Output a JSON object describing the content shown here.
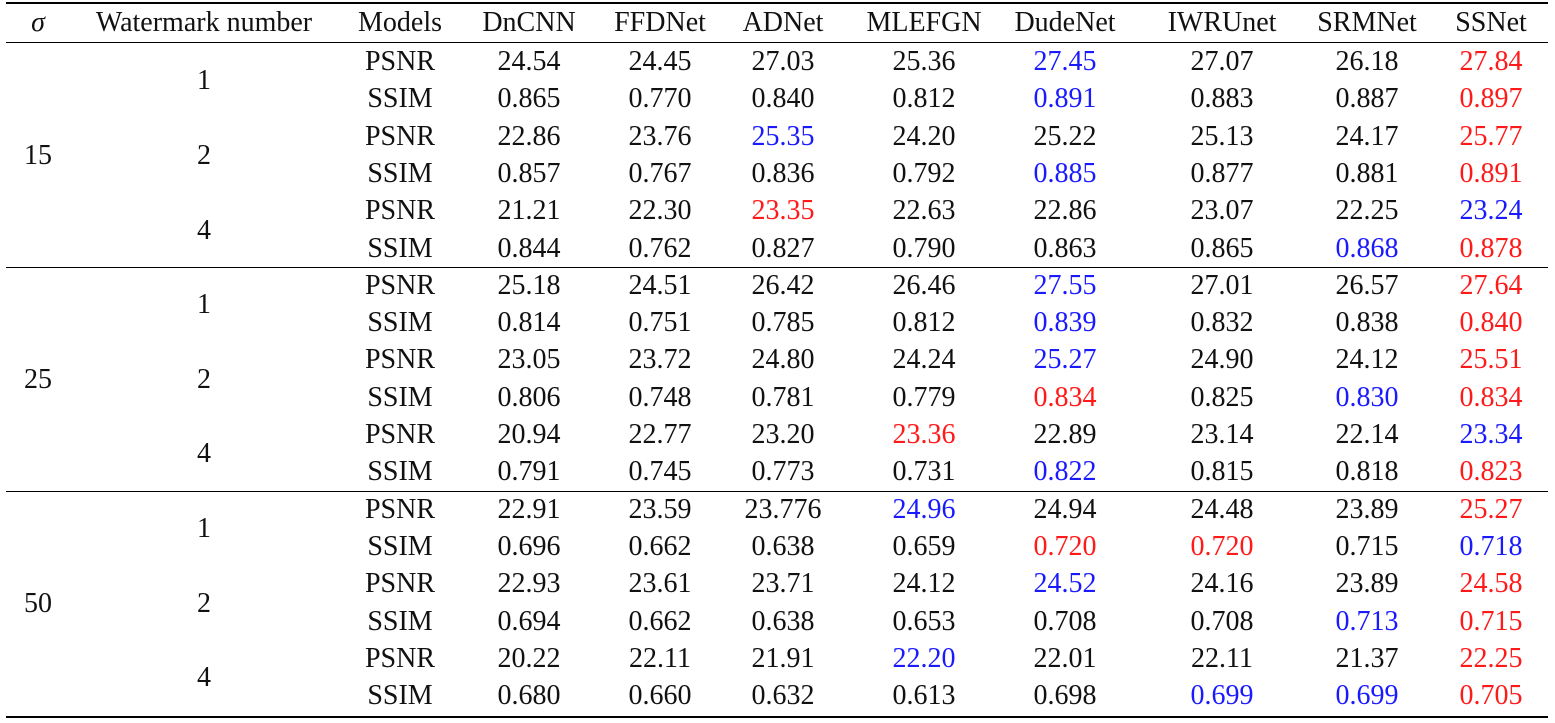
{
  "table": {
    "columns": [
      "σ",
      "Watermark number",
      "Models",
      "DnCNN",
      "FFDNet",
      "ADNet",
      "MLEFGN",
      "DudeNet",
      "IWRUnet",
      "SRMNet",
      "SSNet"
    ],
    "colors": {
      "best": "#ff1a1a",
      "second": "#1a1aff",
      "normal": "#111111"
    },
    "groups": [
      {
        "sigma": "15",
        "subgroups": [
          {
            "watermark": "1",
            "rows": [
              {
                "metric": "PSNR",
                "values": [
                  "24.54",
                  "24.45",
                  "27.03",
                  "25.36",
                  "27.45",
                  "27.07",
                  "26.18",
                  "27.84"
                ],
                "marks": [
                  "",
                  "",
                  "",
                  "",
                  "second",
                  "",
                  "",
                  "best"
                ]
              },
              {
                "metric": "SSIM",
                "values": [
                  "0.865",
                  "0.770",
                  "0.840",
                  "0.812",
                  "0.891",
                  "0.883",
                  "0.887",
                  "0.897"
                ],
                "marks": [
                  "",
                  "",
                  "",
                  "",
                  "second",
                  "",
                  "",
                  "best"
                ]
              }
            ]
          },
          {
            "watermark": "2",
            "rows": [
              {
                "metric": "PSNR",
                "values": [
                  "22.86",
                  "23.76",
                  "25.35",
                  "24.20",
                  "25.22",
                  "25.13",
                  "24.17",
                  "25.77"
                ],
                "marks": [
                  "",
                  "",
                  "second",
                  "",
                  "",
                  "",
                  "",
                  "best"
                ]
              },
              {
                "metric": "SSIM",
                "values": [
                  "0.857",
                  "0.767",
                  "0.836",
                  "0.792",
                  "0.885",
                  "0.877",
                  "0.881",
                  "0.891"
                ],
                "marks": [
                  "",
                  "",
                  "",
                  "",
                  "second",
                  "",
                  "",
                  "best"
                ]
              }
            ]
          },
          {
            "watermark": "4",
            "rows": [
              {
                "metric": "PSNR",
                "values": [
                  "21.21",
                  "22.30",
                  "23.35",
                  "22.63",
                  "22.86",
                  "23.07",
                  "22.25",
                  "23.24"
                ],
                "marks": [
                  "",
                  "",
                  "best",
                  "",
                  "",
                  "",
                  "",
                  "second"
                ]
              },
              {
                "metric": "SSIM",
                "values": [
                  "0.844",
                  "0.762",
                  "0.827",
                  "0.790",
                  "0.863",
                  "0.865",
                  "0.868",
                  "0.878"
                ],
                "marks": [
                  "",
                  "",
                  "",
                  "",
                  "",
                  "",
                  "second",
                  "best"
                ]
              }
            ]
          }
        ]
      },
      {
        "sigma": "25",
        "subgroups": [
          {
            "watermark": "1",
            "rows": [
              {
                "metric": "PSNR",
                "values": [
                  "25.18",
                  "24.51",
                  "26.42",
                  "26.46",
                  "27.55",
                  "27.01",
                  "26.57",
                  "27.64"
                ],
                "marks": [
                  "",
                  "",
                  "",
                  "",
                  "second",
                  "",
                  "",
                  "best"
                ]
              },
              {
                "metric": "SSIM",
                "values": [
                  "0.814",
                  "0.751",
                  "0.785",
                  "0.812",
                  "0.839",
                  "0.832",
                  "0.838",
                  "0.840"
                ],
                "marks": [
                  "",
                  "",
                  "",
                  "",
                  "second",
                  "",
                  "",
                  "best"
                ]
              }
            ]
          },
          {
            "watermark": "2",
            "rows": [
              {
                "metric": "PSNR",
                "values": [
                  "23.05",
                  "23.72",
                  "24.80",
                  "24.24",
                  "25.27",
                  "24.90",
                  "24.12",
                  "25.51"
                ],
                "marks": [
                  "",
                  "",
                  "",
                  "",
                  "second",
                  "",
                  "",
                  "best"
                ]
              },
              {
                "metric": "SSIM",
                "values": [
                  "0.806",
                  "0.748",
                  "0.781",
                  "0.779",
                  "0.834",
                  "0.825",
                  "0.830",
                  "0.834"
                ],
                "marks": [
                  "",
                  "",
                  "",
                  "",
                  "best",
                  "",
                  "second",
                  "best"
                ]
              }
            ]
          },
          {
            "watermark": "4",
            "rows": [
              {
                "metric": "PSNR",
                "values": [
                  "20.94",
                  "22.77",
                  "23.20",
                  "23.36",
                  "22.89",
                  "23.14",
                  "22.14",
                  "23.34"
                ],
                "marks": [
                  "",
                  "",
                  "",
                  "best",
                  "",
                  "",
                  "",
                  "second"
                ]
              },
              {
                "metric": "SSIM",
                "values": [
                  "0.791",
                  "0.745",
                  "0.773",
                  "0.731",
                  "0.822",
                  "0.815",
                  "0.818",
                  "0.823"
                ],
                "marks": [
                  "",
                  "",
                  "",
                  "",
                  "second",
                  "",
                  "",
                  "best"
                ]
              }
            ]
          }
        ]
      },
      {
        "sigma": "50",
        "subgroups": [
          {
            "watermark": "1",
            "rows": [
              {
                "metric": "PSNR",
                "values": [
                  "22.91",
                  "23.59",
                  "23.776",
                  "24.96",
                  "24.94",
                  "24.48",
                  "23.89",
                  "25.27"
                ],
                "marks": [
                  "",
                  "",
                  "",
                  "second",
                  "",
                  "",
                  "",
                  "best"
                ]
              },
              {
                "metric": "SSIM",
                "values": [
                  "0.696",
                  "0.662",
                  "0.638",
                  "0.659",
                  "0.720",
                  "0.720",
                  "0.715",
                  "0.718"
                ],
                "marks": [
                  "",
                  "",
                  "",
                  "",
                  "best",
                  "best",
                  "",
                  "second"
                ]
              }
            ]
          },
          {
            "watermark": "2",
            "rows": [
              {
                "metric": "PSNR",
                "values": [
                  "22.93",
                  "23.61",
                  "23.71",
                  "24.12",
                  "24.52",
                  "24.16",
                  "23.89",
                  "24.58"
                ],
                "marks": [
                  "",
                  "",
                  "",
                  "",
                  "second",
                  "",
                  "",
                  "best"
                ]
              },
              {
                "metric": "SSIM",
                "values": [
                  "0.694",
                  "0.662",
                  "0.638",
                  "0.653",
                  "0.708",
                  "0.708",
                  "0.713",
                  "0.715"
                ],
                "marks": [
                  "",
                  "",
                  "",
                  "",
                  "",
                  "",
                  "second",
                  "best"
                ]
              }
            ]
          },
          {
            "watermark": "4",
            "rows": [
              {
                "metric": "PSNR",
                "values": [
                  "20.22",
                  "22.11",
                  "21.91",
                  "22.20",
                  "22.01",
                  "22.11",
                  "21.37",
                  "22.25"
                ],
                "marks": [
                  "",
                  "",
                  "",
                  "second",
                  "",
                  "",
                  "",
                  "best"
                ]
              },
              {
                "metric": "SSIM",
                "values": [
                  "0.680",
                  "0.660",
                  "0.632",
                  "0.613",
                  "0.698",
                  "0.699",
                  "0.699",
                  "0.705"
                ],
                "marks": [
                  "",
                  "",
                  "",
                  "",
                  "",
                  "second",
                  "second",
                  "best"
                ]
              }
            ]
          }
        ]
      }
    ]
  }
}
